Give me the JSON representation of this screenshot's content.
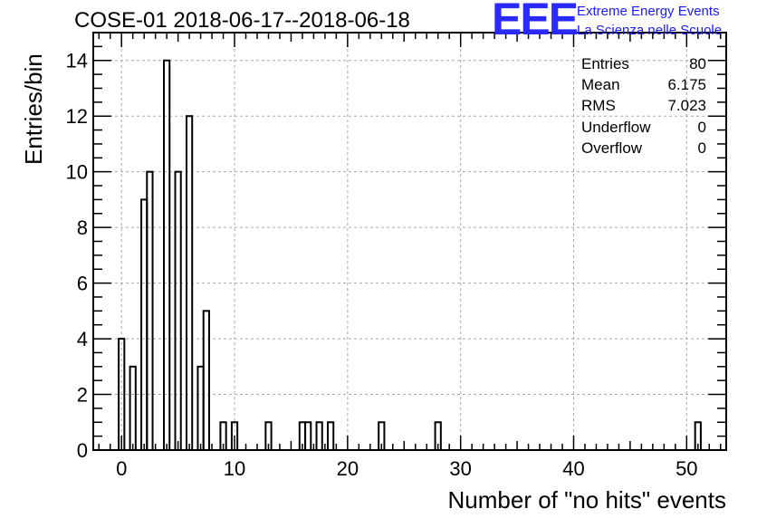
{
  "chart_data": {
    "type": "histogram",
    "title": "COSE-01 2018-06-17--2018-06-18",
    "xlabel": "Number of \"no hits\" events",
    "ylabel": "Entries/bin",
    "xlim": [
      -2.5,
      53.5
    ],
    "ylim": [
      0,
      15
    ],
    "bin_width": 0.5,
    "xticks": [
      0,
      10,
      20,
      30,
      40,
      50
    ],
    "yticks": [
      0,
      2,
      4,
      6,
      8,
      10,
      12,
      14
    ],
    "grid": true,
    "bins": [
      {
        "x": 0,
        "count": 4
      },
      {
        "x": 1,
        "count": 3
      },
      {
        "x": 2,
        "count": 9
      },
      {
        "x": 2.5,
        "count": 10
      },
      {
        "x": 4,
        "count": 14
      },
      {
        "x": 5,
        "count": 10
      },
      {
        "x": 6,
        "count": 12
      },
      {
        "x": 7,
        "count": 3
      },
      {
        "x": 7.5,
        "count": 5
      },
      {
        "x": 9,
        "count": 1
      },
      {
        "x": 10,
        "count": 1
      },
      {
        "x": 13,
        "count": 1
      },
      {
        "x": 16,
        "count": 1
      },
      {
        "x": 16.5,
        "count": 1
      },
      {
        "x": 17.5,
        "count": 1
      },
      {
        "x": 18.5,
        "count": 1
      },
      {
        "x": 23,
        "count": 1
      },
      {
        "x": 28,
        "count": 1
      },
      {
        "x": 51,
        "count": 1
      }
    ],
    "stats": [
      {
        "label": "Entries",
        "value": "80"
      },
      {
        "label": "Mean",
        "value": "6.175"
      },
      {
        "label": "RMS",
        "value": "7.023"
      },
      {
        "label": "Underflow",
        "value": "0"
      },
      {
        "label": "Overflow",
        "value": "0"
      }
    ],
    "legend_placement": "top-right"
  },
  "logo": {
    "text": "EEE",
    "line1": "Extreme Energy Events",
    "line2": "La Scienza nelle Scuole",
    "color": "#2a2aff"
  }
}
